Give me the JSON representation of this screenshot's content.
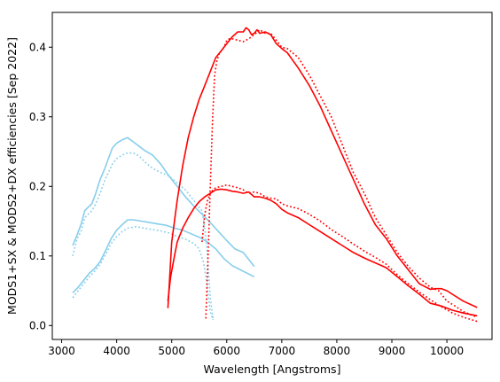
{
  "chart_data": {
    "type": "line",
    "title": "",
    "xlabel": "Wavelength [Angstroms]",
    "ylabel": "MODS1+SX & MODS2+DX efficiencies [Sep 2022]",
    "xlim": [
      2830,
      10820
    ],
    "ylim": [
      -0.02,
      0.45
    ],
    "xticks": [
      3000,
      4000,
      5000,
      6000,
      7000,
      8000,
      9000,
      10000
    ],
    "yticks": [
      0.0,
      0.1,
      0.2,
      0.3,
      0.4
    ],
    "xtick_labels": [
      "3000",
      "4000",
      "5000",
      "6000",
      "7000",
      "8000",
      "9000",
      "10000"
    ],
    "ytick_labels": [
      "0.0",
      "0.1",
      "0.2",
      "0.3",
      "0.4"
    ],
    "grid": false,
    "legend": "none",
    "series": [
      {
        "color": "#87ceeb",
        "style": "solid",
        "x": [
          3200,
          3280,
          3350,
          3420,
          3480,
          3550,
          3620,
          3700,
          3780,
          3850,
          3920,
          4000,
          4100,
          4200,
          4300,
          4400,
          4500,
          4650,
          4800,
          4950,
          5100,
          5250,
          5400,
          5550,
          5700,
          5850,
          6000,
          6150,
          6300,
          6500
        ],
        "y": [
          0.115,
          0.13,
          0.145,
          0.165,
          0.17,
          0.175,
          0.19,
          0.21,
          0.225,
          0.24,
          0.255,
          0.262,
          0.267,
          0.27,
          0.264,
          0.258,
          0.252,
          0.245,
          0.232,
          0.215,
          0.2,
          0.185,
          0.172,
          0.16,
          0.148,
          0.135,
          0.122,
          0.11,
          0.105,
          0.085
        ]
      },
      {
        "color": "#87ceeb",
        "style": "dotted",
        "x": [
          3200,
          3280,
          3350,
          3420,
          3480,
          3550,
          3620,
          3700,
          3780,
          3850,
          3920,
          4000,
          4100,
          4200,
          4300,
          4400,
          4500,
          4650,
          4800,
          4950,
          5100,
          5250,
          5350,
          5450,
          5550,
          5600,
          5650,
          5700,
          5750
        ],
        "y": [
          0.1,
          0.125,
          0.135,
          0.155,
          0.16,
          0.165,
          0.175,
          0.19,
          0.208,
          0.22,
          0.232,
          0.24,
          0.245,
          0.248,
          0.248,
          0.244,
          0.236,
          0.226,
          0.22,
          0.215,
          0.205,
          0.195,
          0.185,
          0.175,
          0.165,
          0.14,
          0.1,
          0.04,
          0.01
        ]
      },
      {
        "color": "#87ceeb",
        "style": "solid",
        "x": [
          3200,
          3300,
          3400,
          3500,
          3600,
          3700,
          3800,
          3900,
          4000,
          4100,
          4200,
          4300,
          4450,
          4600,
          4750,
          4900,
          5050,
          5200,
          5350,
          5500,
          5650,
          5800,
          5950,
          6100,
          6250,
          6500
        ],
        "y": [
          0.047,
          0.055,
          0.065,
          0.075,
          0.082,
          0.092,
          0.108,
          0.125,
          0.137,
          0.145,
          0.152,
          0.152,
          0.15,
          0.148,
          0.146,
          0.144,
          0.14,
          0.137,
          0.132,
          0.127,
          0.12,
          0.11,
          0.096,
          0.086,
          0.08,
          0.07
        ]
      },
      {
        "color": "#87ceeb",
        "style": "dotted",
        "x": [
          3200,
          3300,
          3400,
          3500,
          3600,
          3700,
          3800,
          3900,
          4000,
          4100,
          4200,
          4350,
          4500,
          4650,
          4800,
          4950,
          5100,
          5250,
          5400,
          5500,
          5580,
          5620,
          5660,
          5700,
          5750
        ],
        "y": [
          0.04,
          0.05,
          0.06,
          0.07,
          0.078,
          0.088,
          0.102,
          0.118,
          0.128,
          0.135,
          0.14,
          0.142,
          0.14,
          0.138,
          0.136,
          0.133,
          0.128,
          0.124,
          0.118,
          0.11,
          0.09,
          0.07,
          0.045,
          0.02,
          0.008
        ]
      },
      {
        "color": "#ff0000",
        "style": "solid",
        "x": [
          4930,
          5000,
          5100,
          5200,
          5300,
          5400,
          5500,
          5600,
          5700,
          5800,
          5900,
          6000,
          6100,
          6200,
          6300,
          6350,
          6400,
          6450,
          6500,
          6550,
          6600,
          6700,
          6800,
          6900,
          7000,
          7100,
          7300,
          7500,
          7700,
          7900,
          8100,
          8300,
          8500,
          8700,
          8900,
          9100,
          9300,
          9500,
          9700,
          9800,
          9900,
          10000,
          10100,
          10300,
          10550
        ],
        "y": [
          0.025,
          0.12,
          0.18,
          0.23,
          0.27,
          0.3,
          0.325,
          0.345,
          0.365,
          0.385,
          0.395,
          0.405,
          0.415,
          0.422,
          0.422,
          0.428,
          0.425,
          0.418,
          0.42,
          0.425,
          0.42,
          0.422,
          0.418,
          0.405,
          0.398,
          0.392,
          0.37,
          0.345,
          0.315,
          0.28,
          0.245,
          0.21,
          0.175,
          0.145,
          0.125,
          0.1,
          0.08,
          0.06,
          0.052,
          0.053,
          0.053,
          0.05,
          0.045,
          0.035,
          0.026
        ]
      },
      {
        "color": "#ff0000",
        "style": "dotted",
        "x": [
          5620,
          5660,
          5700,
          5740,
          5780,
          5820,
          5860,
          5900,
          5950,
          6000,
          6050,
          6100,
          6200,
          6300,
          6400,
          6500,
          6600,
          6700,
          6800,
          6900,
          7000,
          7100,
          7300,
          7500,
          7700,
          7900,
          8100,
          8300,
          8500,
          8700,
          8900,
          9100,
          9300,
          9500,
          9700,
          9850,
          10000,
          10150,
          10300,
          10550
        ],
        "y": [
          0.01,
          0.1,
          0.2,
          0.29,
          0.36,
          0.38,
          0.39,
          0.395,
          0.4,
          0.41,
          0.412,
          0.412,
          0.41,
          0.408,
          0.412,
          0.418,
          0.425,
          0.42,
          0.42,
          0.41,
          0.4,
          0.398,
          0.385,
          0.36,
          0.33,
          0.3,
          0.26,
          0.22,
          0.19,
          0.155,
          0.13,
          0.105,
          0.085,
          0.068,
          0.055,
          0.05,
          0.035,
          0.028,
          0.02,
          0.012
        ]
      },
      {
        "color": "#ff0000",
        "style": "solid",
        "x": [
          4930,
          4980,
          5050,
          5100,
          5200,
          5300,
          5400,
          5500,
          5600,
          5700,
          5800,
          5900,
          6000,
          6100,
          6200,
          6300,
          6400,
          6500,
          6600,
          6700,
          6800,
          6900,
          7000,
          7100,
          7300,
          7500,
          7700,
          7900,
          8100,
          8300,
          8500,
          8700,
          8900,
          9100,
          9300,
          9500,
          9700,
          9900,
          10100,
          10300,
          10550
        ],
        "y": [
          0.035,
          0.07,
          0.1,
          0.12,
          0.14,
          0.155,
          0.168,
          0.178,
          0.185,
          0.19,
          0.195,
          0.196,
          0.195,
          0.193,
          0.192,
          0.19,
          0.192,
          0.185,
          0.185,
          0.183,
          0.18,
          0.175,
          0.167,
          0.162,
          0.155,
          0.145,
          0.135,
          0.125,
          0.115,
          0.105,
          0.097,
          0.09,
          0.083,
          0.07,
          0.057,
          0.045,
          0.032,
          0.028,
          0.022,
          0.018,
          0.014
        ]
      },
      {
        "color": "#ff0000",
        "style": "dotted",
        "x": [
          5550,
          5600,
          5650,
          5700,
          5750,
          5800,
          5900,
          6000,
          6100,
          6200,
          6300,
          6400,
          6500,
          6600,
          6700,
          6800,
          6900,
          7000,
          7100,
          7300,
          7500,
          7700,
          7900,
          8100,
          8300,
          8500,
          8700,
          8900,
          9100,
          9300,
          9500,
          9700,
          9900,
          10100,
          10300,
          10550
        ],
        "y": [
          0.12,
          0.16,
          0.18,
          0.19,
          0.195,
          0.198,
          0.2,
          0.202,
          0.2,
          0.198,
          0.195,
          0.19,
          0.192,
          0.19,
          0.185,
          0.183,
          0.182,
          0.175,
          0.172,
          0.168,
          0.16,
          0.15,
          0.138,
          0.128,
          0.117,
          0.107,
          0.098,
          0.088,
          0.073,
          0.06,
          0.048,
          0.037,
          0.027,
          0.018,
          0.012,
          0.006
        ]
      }
    ]
  }
}
